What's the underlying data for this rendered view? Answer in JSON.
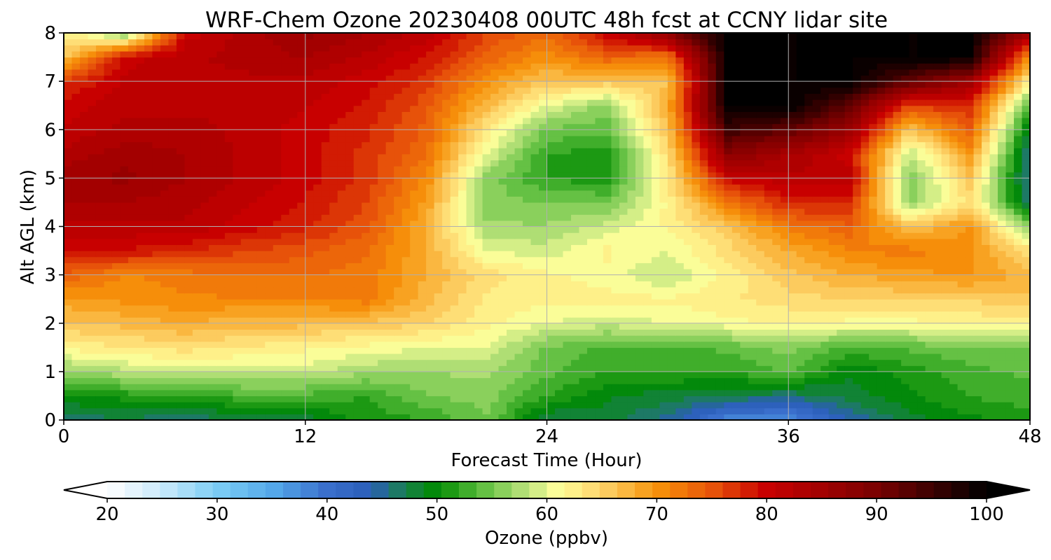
{
  "chart_data": {
    "type": "heatmap",
    "title": "WRF-Chem Ozone  20230408 00UTC 48h fcst at CCNY lidar site",
    "xlabel": "Forecast Time (Hour)",
    "ylabel": "Alt AGL (km)",
    "xlim": [
      0,
      48
    ],
    "ylim": [
      0,
      8
    ],
    "x_ticks": [
      0,
      12,
      24,
      36,
      48
    ],
    "y_ticks": [
      0,
      1,
      2,
      3,
      4,
      5,
      6,
      7,
      8
    ],
    "grid": true,
    "x": [
      0,
      3,
      6,
      9,
      12,
      15,
      18,
      21,
      24,
      27,
      30,
      33,
      36,
      39,
      42,
      45,
      48
    ],
    "y": [
      0,
      0.5,
      1,
      1.5,
      2,
      2.5,
      3,
      3.5,
      4,
      4.5,
      5,
      5.5,
      6,
      6.5,
      7,
      7.5,
      8
    ],
    "z": [
      [
        46,
        47,
        46,
        47,
        48,
        51,
        52,
        55,
        47,
        48,
        45,
        38,
        37,
        44,
        48,
        50,
        51
      ],
      [
        50,
        51,
        52,
        53,
        53,
        52,
        55,
        56,
        52,
        49,
        48,
        47,
        46,
        48,
        50,
        52,
        53
      ],
      [
        56,
        58,
        59,
        59,
        59,
        57,
        57,
        57,
        54,
        52,
        52,
        52,
        54,
        49,
        51,
        53,
        54
      ],
      [
        62,
        63,
        64,
        63,
        62,
        61,
        60,
        60,
        55,
        53,
        53,
        54,
        56,
        53,
        54,
        55,
        55
      ],
      [
        66,
        67,
        68,
        67,
        67,
        66,
        65,
        62,
        60,
        59,
        60,
        61,
        62,
        61,
        61,
        62,
        62
      ],
      [
        69,
        70,
        71,
        71,
        71,
        72,
        67,
        63,
        62,
        62,
        62,
        63,
        64,
        65,
        65,
        65,
        66
      ],
      [
        74,
        71,
        72,
        73,
        73,
        72,
        68,
        64,
        62,
        61,
        58,
        62,
        66,
        68,
        69,
        70,
        67
      ],
      [
        79,
        79,
        78,
        76,
        75,
        73,
        68,
        60,
        59,
        62,
        60,
        64,
        68,
        71,
        72,
        70,
        64
      ],
      [
        82,
        82,
        82,
        80,
        78,
        75,
        68,
        57,
        57,
        59,
        62,
        66,
        72,
        74,
        66,
        70,
        56
      ],
      [
        84,
        84,
        83,
        81,
        79,
        76,
        69,
        56,
        55,
        55,
        62,
        72,
        78,
        78,
        56,
        64,
        46
      ],
      [
        85,
        86,
        84,
        82,
        80,
        77,
        71,
        56,
        52,
        51,
        63,
        80,
        82,
        82,
        55,
        66,
        44
      ],
      [
        83,
        85,
        84,
        82,
        80,
        77,
        73,
        60,
        52,
        51,
        64,
        88,
        84,
        80,
        58,
        70,
        45
      ],
      [
        81,
        83,
        83,
        82,
        80,
        78,
        74,
        63,
        55,
        54,
        66,
        95,
        92,
        86,
        66,
        74,
        48
      ],
      [
        80,
        82,
        82,
        82,
        81,
        79,
        75,
        67,
        60,
        56,
        68,
        100,
        100,
        92,
        76,
        78,
        53
      ],
      [
        77,
        81,
        82,
        82,
        82,
        80,
        77,
        70,
        66,
        66,
        66,
        100,
        100,
        100,
        92,
        85,
        62
      ],
      [
        66,
        80,
        82,
        83,
        84,
        82,
        79,
        74,
        70,
        74,
        72,
        100,
        100,
        100,
        100,
        100,
        70
      ],
      [
        63,
        55,
        80,
        83,
        86,
        84,
        82,
        76,
        73,
        80,
        88,
        100,
        100,
        100,
        100,
        100,
        85
      ]
    ],
    "colorbar": {
      "label": "Ozone  (ppbv)",
      "min": 20,
      "max": 100,
      "ticks": [
        20,
        30,
        40,
        50,
        60,
        70,
        80,
        90,
        100
      ],
      "extend": "both",
      "colors": [
        [
          20,
          "#ffffff"
        ],
        [
          25,
          "#c9e9fb"
        ],
        [
          30,
          "#7ccdf5"
        ],
        [
          35,
          "#55a9ea"
        ],
        [
          40,
          "#3a6fcc"
        ],
        [
          44,
          "#2a5db8"
        ],
        [
          47,
          "#1a8050"
        ],
        [
          50,
          "#008a00"
        ],
        [
          54,
          "#5cbd3e"
        ],
        [
          58,
          "#b8e27a"
        ],
        [
          61,
          "#ffff9a"
        ],
        [
          65,
          "#fdd36a"
        ],
        [
          70,
          "#f7930a"
        ],
        [
          75,
          "#e8550a"
        ],
        [
          80,
          "#c80000"
        ],
        [
          90,
          "#7a0000"
        ],
        [
          100,
          "#000000"
        ]
      ]
    }
  }
}
